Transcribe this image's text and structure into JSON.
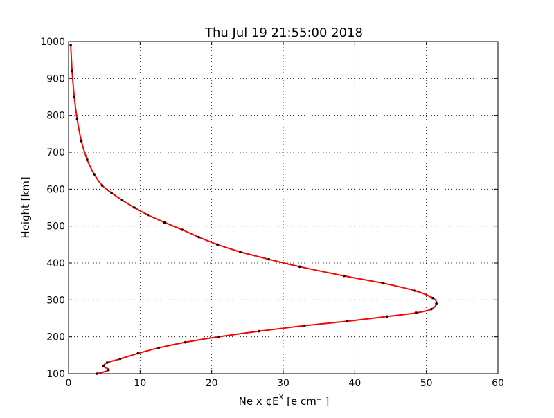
{
  "chart_data": {
    "type": "line",
    "title": "Thu Jul 19 21:55:00 2018",
    "xlabel": "Ne x ¢E",
    "xlabel_sup": "X",
    "xlabel_unit": " [e cm⁻ ]",
    "ylabel": "Height [km]",
    "xlim": [
      0,
      60
    ],
    "ylim": [
      100,
      1000
    ],
    "x_ticks": [
      "0",
      "10",
      "20",
      "30",
      "40",
      "50",
      "60"
    ],
    "y_ticks": [
      "100",
      "200",
      "300",
      "400",
      "500",
      "600",
      "700",
      "800",
      "900",
      "1000"
    ],
    "grid": true,
    "line_color": "#ff0000",
    "marker_color": "#000000",
    "series": [
      {
        "style": "red line with black point markers",
        "points": [
          [
            4.0,
            100
          ],
          [
            5.6,
            110
          ],
          [
            4.9,
            120
          ],
          [
            5.4,
            130
          ],
          [
            7.2,
            140
          ],
          [
            9.7,
            155
          ],
          [
            12.6,
            170
          ],
          [
            16.3,
            185
          ],
          [
            21.0,
            200
          ],
          [
            26.6,
            215
          ],
          [
            32.9,
            230
          ],
          [
            38.9,
            242
          ],
          [
            44.5,
            255
          ],
          [
            48.6,
            265
          ],
          [
            50.7,
            275
          ],
          [
            51.4,
            290
          ],
          [
            50.9,
            305
          ],
          [
            48.4,
            325
          ],
          [
            44.0,
            345
          ],
          [
            38.5,
            365
          ],
          [
            32.3,
            390
          ],
          [
            28.0,
            410
          ],
          [
            24.0,
            430
          ],
          [
            20.8,
            450
          ],
          [
            18.2,
            470
          ],
          [
            15.9,
            490
          ],
          [
            13.4,
            510
          ],
          [
            11.1,
            530
          ],
          [
            9.2,
            550
          ],
          [
            7.5,
            570
          ],
          [
            6.0,
            590
          ],
          [
            4.7,
            610
          ],
          [
            3.6,
            640
          ],
          [
            2.6,
            680
          ],
          [
            1.8,
            730
          ],
          [
            1.2,
            790
          ],
          [
            0.8,
            850
          ],
          [
            0.5,
            920
          ],
          [
            0.3,
            990
          ]
        ]
      }
    ]
  }
}
